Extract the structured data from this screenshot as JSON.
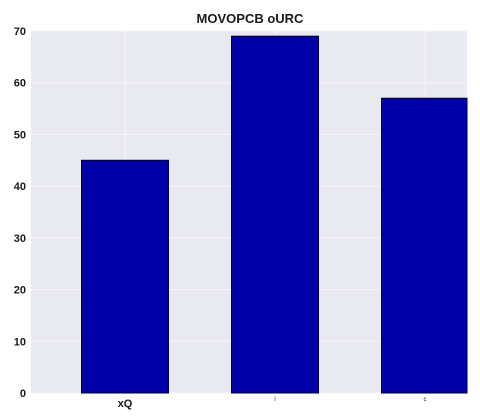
{
  "chart_data": {
    "type": "bar",
    "title": "MOVOPCB oURC",
    "xlabel": "",
    "ylabel": "",
    "categories": [
      "xQ",
      "l",
      "c"
    ],
    "values": [
      45,
      69,
      57
    ],
    "ylim": [
      0,
      70
    ],
    "yticks": [
      "0",
      "10",
      "20",
      "30",
      "40",
      "50",
      "60",
      "70"
    ],
    "grid": true,
    "colors": {
      "bar": "#0000a8",
      "bar_edge": "#000033",
      "plot_background": "#e9e9f2",
      "grid": "#f6f6fa"
    }
  }
}
